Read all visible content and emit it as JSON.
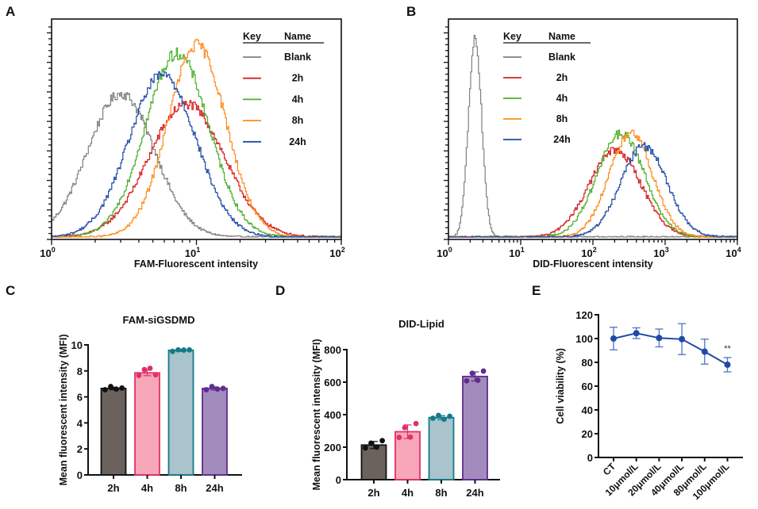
{
  "figure": {
    "panels": [
      "A",
      "B",
      "C",
      "D",
      "E"
    ]
  },
  "chart_data": [
    {
      "panel": "A",
      "type": "line",
      "title": "",
      "xlabel": "FAM-Fluorescent intensity",
      "ylabel": "",
      "xscale": "log",
      "xlim": [
        1,
        100
      ],
      "x_tick_labels": [
        {
          "base": "10",
          "exp": "0"
        },
        {
          "base": "10",
          "exp": "1"
        },
        {
          "base": "10",
          "exp": "2"
        }
      ],
      "legend": {
        "placement": "top-right",
        "header": {
          "key": "Key",
          "name": "Name"
        },
        "entries": [
          "Blank",
          "2h",
          "4h",
          "8h",
          "24h"
        ]
      },
      "series": [
        {
          "name": "Blank",
          "color": "#808080",
          "peak_x": 3.0,
          "relative_peak": 0.68,
          "log_sd": 0.23
        },
        {
          "name": "2h",
          "color": "#d62020",
          "peak_x": 8.5,
          "relative_peak": 0.63,
          "log_sd": 0.26
        },
        {
          "name": "4h",
          "color": "#4caf2a",
          "peak_x": 7.3,
          "relative_peak": 0.87,
          "log_sd": 0.22
        },
        {
          "name": "8h",
          "color": "#ff8a1c",
          "peak_x": 10.0,
          "relative_peak": 0.91,
          "log_sd": 0.2
        },
        {
          "name": "24h",
          "color": "#1f4aa8",
          "peak_x": 5.8,
          "relative_peak": 0.77,
          "log_sd": 0.23
        }
      ]
    },
    {
      "panel": "B",
      "type": "line",
      "title": "",
      "xlabel": "DID-Fluorescent intensity",
      "ylabel": "",
      "xscale": "log",
      "xlim": [
        1,
        10000
      ],
      "x_tick_labels": [
        {
          "base": "10",
          "exp": "0"
        },
        {
          "base": "10",
          "exp": "1"
        },
        {
          "base": "10",
          "exp": "2"
        },
        {
          "base": "10",
          "exp": "3"
        },
        {
          "base": "10",
          "exp": "4"
        }
      ],
      "legend": {
        "placement": "top-left",
        "header": {
          "key": "Key",
          "name": "Name"
        },
        "entries": [
          "Blank",
          "2h",
          "4h",
          "8h",
          "24h"
        ]
      },
      "series": [
        {
          "name": "Blank",
          "color": "#808080",
          "peak_x": 2.3,
          "relative_peak": 0.95,
          "log_sd": 0.09
        },
        {
          "name": "2h",
          "color": "#d62020",
          "peak_x": 200,
          "relative_peak": 0.41,
          "log_sd": 0.36
        },
        {
          "name": "4h",
          "color": "#4caf2a",
          "peak_x": 240,
          "relative_peak": 0.49,
          "log_sd": 0.33
        },
        {
          "name": "8h",
          "color": "#ff8a1c",
          "peak_x": 330,
          "relative_peak": 0.49,
          "log_sd": 0.3
        },
        {
          "name": "24h",
          "color": "#1f4aa8",
          "peak_x": 500,
          "relative_peak": 0.43,
          "log_sd": 0.32
        }
      ]
    },
    {
      "panel": "C",
      "type": "bar",
      "title": "FAM-siGSDMD",
      "xlabel": "",
      "ylabel": "Mean fluorescent intensity (MFI)",
      "ylim": [
        0,
        10
      ],
      "y_ticks": [
        0,
        2,
        4,
        6,
        8,
        10
      ],
      "categories": [
        "2h",
        "4h",
        "8h",
        "24h"
      ],
      "values": [
        6.65,
        7.85,
        9.58,
        6.65
      ],
      "errors": [
        0.1,
        0.22,
        0.08,
        0.12
      ],
      "points": [
        [
          6.55,
          6.8,
          6.6,
          6.68
        ],
        [
          7.65,
          8.1,
          8.2,
          7.7
        ],
        [
          9.5,
          9.62,
          9.6,
          9.62
        ],
        [
          6.55,
          6.8,
          6.6,
          6.65
        ]
      ],
      "fill_colors": [
        "#6b625d",
        "#f7a7b7",
        "#a9c4cc",
        "#a48bbd"
      ],
      "edge_colors": [
        "#111111",
        "#e0306c",
        "#157a88",
        "#5e2d8f"
      ],
      "point_colors": [
        "#111111",
        "#e0306c",
        "#157a88",
        "#5e2d8f"
      ]
    },
    {
      "panel": "D",
      "type": "bar",
      "title": "DID-Lipid",
      "xlabel": "",
      "ylabel": "Mean fluorescent intensity (MFI)",
      "ylim": [
        0,
        800
      ],
      "y_ticks": [
        0,
        200,
        400,
        600,
        800
      ],
      "categories": [
        "2h",
        "4h",
        "8h",
        "24h"
      ],
      "values": [
        213,
        295,
        382,
        635
      ],
      "errors": [
        22,
        42,
        12,
        28
      ],
      "points": [
        [
          195,
          225,
          200,
          240
        ],
        [
          260,
          320,
          262,
          345
        ],
        [
          378,
          395,
          372,
          390
        ],
        [
          608,
          655,
          612,
          668
        ]
      ],
      "fill_colors": [
        "#6b625d",
        "#f7a7b7",
        "#a9c4cc",
        "#a48bbd"
      ],
      "edge_colors": [
        "#111111",
        "#e0306c",
        "#157a88",
        "#5e2d8f"
      ],
      "point_colors": [
        "#111111",
        "#e0306c",
        "#157a88",
        "#5e2d8f"
      ]
    },
    {
      "panel": "E",
      "type": "line",
      "title": "",
      "xlabel": "",
      "ylabel": "Cell viability (%)",
      "ylim": [
        0,
        120
      ],
      "y_ticks": [
        0,
        20,
        40,
        60,
        80,
        100,
        120
      ],
      "categories": [
        "CT",
        "10μmol/L",
        "20μmol/L",
        "40μmol/L",
        "80μmol/L",
        "100μmol/L"
      ],
      "values": [
        100,
        104.5,
        100.5,
        99.5,
        89,
        78
      ],
      "errors": [
        9.5,
        4.5,
        7.5,
        13,
        10.5,
        6
      ],
      "color": "#1f4aa8",
      "annotations": [
        {
          "category": "100μmol/L",
          "text": "**"
        }
      ]
    }
  ]
}
